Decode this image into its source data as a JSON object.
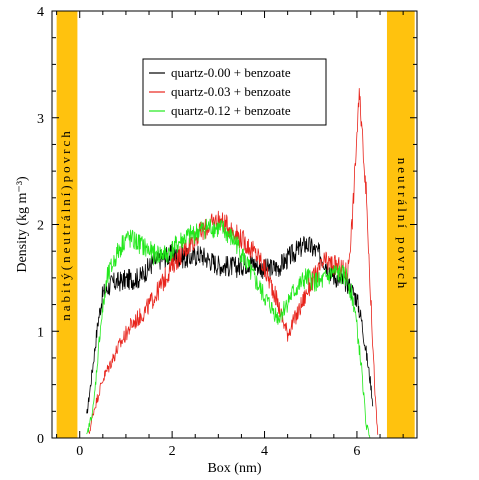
{
  "chart_data": {
    "type": "line",
    "xlabel": "Box (nm)",
    "ylabel": "Density (kg m⁻³)",
    "xlim": [
      -0.6,
      7.3
    ],
    "ylim": [
      0,
      4
    ],
    "xticks": [
      0,
      2,
      4,
      6
    ],
    "yticks": [
      0,
      1,
      2,
      3,
      4
    ],
    "grid": false,
    "legend_position": "top-center",
    "surfaces": [
      {
        "label": "nabitý(neutrální)povrch",
        "x_range": [
          -0.5,
          -0.05
        ],
        "color": "#ffc20e"
      },
      {
        "label": "neutrální povrch",
        "x_range": [
          6.65,
          7.25
        ],
        "color": "#ffc20e"
      }
    ],
    "series": [
      {
        "name": "quartz-0.00 + benzoate",
        "color": "#000000",
        "points": [
          [
            0.15,
            0.2
          ],
          [
            0.25,
            0.55
          ],
          [
            0.4,
            1.1
          ],
          [
            0.5,
            1.35
          ],
          [
            0.7,
            1.45
          ],
          [
            1.0,
            1.48
          ],
          [
            1.3,
            1.5
          ],
          [
            1.6,
            1.65
          ],
          [
            2.0,
            1.72
          ],
          [
            2.3,
            1.68
          ],
          [
            2.6,
            1.72
          ],
          [
            3.0,
            1.62
          ],
          [
            3.4,
            1.6
          ],
          [
            3.7,
            1.65
          ],
          [
            4.0,
            1.58
          ],
          [
            4.3,
            1.6
          ],
          [
            4.6,
            1.72
          ],
          [
            4.9,
            1.82
          ],
          [
            5.2,
            1.72
          ],
          [
            5.5,
            1.52
          ],
          [
            5.8,
            1.45
          ],
          [
            6.0,
            1.3
          ],
          [
            6.1,
            1.1
          ],
          [
            6.2,
            0.8
          ],
          [
            6.3,
            0.5
          ],
          [
            6.35,
            0.3
          ]
        ]
      },
      {
        "name": "quartz-0.03 + benzoate",
        "color": "#e8241c",
        "points": [
          [
            0.2,
            0.03
          ],
          [
            0.3,
            0.25
          ],
          [
            0.5,
            0.55
          ],
          [
            0.8,
            0.82
          ],
          [
            1.1,
            1.05
          ],
          [
            1.4,
            1.18
          ],
          [
            1.7,
            1.38
          ],
          [
            2.0,
            1.62
          ],
          [
            2.3,
            1.78
          ],
          [
            2.6,
            1.92
          ],
          [
            3.0,
            2.05
          ],
          [
            3.3,
            1.95
          ],
          [
            3.6,
            1.82
          ],
          [
            3.9,
            1.68
          ],
          [
            4.2,
            1.38
          ],
          [
            4.4,
            1.1
          ],
          [
            4.5,
            0.98
          ],
          [
            4.7,
            1.15
          ],
          [
            5.0,
            1.45
          ],
          [
            5.3,
            1.65
          ],
          [
            5.6,
            1.6
          ],
          [
            5.8,
            1.55
          ],
          [
            5.9,
            2.05
          ],
          [
            6.0,
            2.85
          ],
          [
            6.05,
            3.2
          ],
          [
            6.1,
            2.95
          ],
          [
            6.2,
            2.3
          ],
          [
            6.3,
            1.3
          ],
          [
            6.4,
            0.35
          ],
          [
            6.45,
            0.03
          ]
        ]
      },
      {
        "name": "quartz-0.12 + benzoate",
        "color": "#22e81c",
        "points": [
          [
            0.15,
            0.01
          ],
          [
            0.3,
            0.3
          ],
          [
            0.45,
            1.05
          ],
          [
            0.6,
            1.5
          ],
          [
            0.8,
            1.72
          ],
          [
            1.0,
            1.88
          ],
          [
            1.3,
            1.82
          ],
          [
            1.6,
            1.72
          ],
          [
            1.9,
            1.72
          ],
          [
            2.2,
            1.85
          ],
          [
            2.5,
            1.92
          ],
          [
            2.8,
            1.98
          ],
          [
            3.1,
            1.95
          ],
          [
            3.4,
            1.82
          ],
          [
            3.7,
            1.55
          ],
          [
            4.0,
            1.32
          ],
          [
            4.3,
            1.12
          ],
          [
            4.6,
            1.35
          ],
          [
            4.9,
            1.5
          ],
          [
            5.2,
            1.45
          ],
          [
            5.5,
            1.55
          ],
          [
            5.8,
            1.5
          ],
          [
            5.95,
            1.22
          ],
          [
            6.1,
            0.65
          ],
          [
            6.2,
            0.12
          ],
          [
            6.3,
            0.0
          ]
        ]
      }
    ]
  }
}
